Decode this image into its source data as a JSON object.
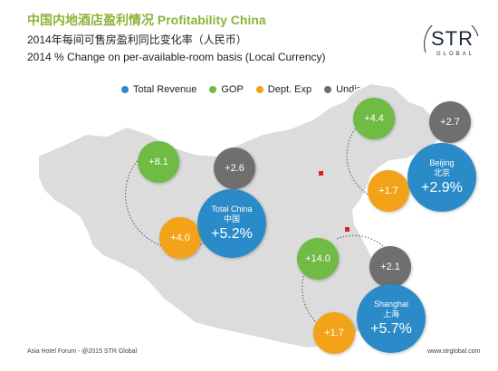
{
  "header": {
    "title": "中国内地酒店盈利情况 Profitability China",
    "subtitle_zh": "2014年每间可售房盈利同比变化率（人民币）",
    "subtitle_en": "2014 % Change on per-available-room basis (Local Currency)"
  },
  "logo": {
    "name": "STR",
    "tagline": "GLOBAL"
  },
  "legend": [
    {
      "label": "Total Revenue",
      "color": "#2b8bc8"
    },
    {
      "label": "GOP",
      "color": "#6fbb44"
    },
    {
      "label": "Dept. Exp",
      "color": "#f3a319"
    },
    {
      "label": "Undist. Exp",
      "color": "#6f6f6f"
    }
  ],
  "groups": {
    "china": {
      "city_en": "Total China",
      "city_zh": "中国",
      "total_revenue": "+5.2%",
      "gop": "+8.1",
      "dept_exp": "+4.0",
      "undist_exp": "+2.6"
    },
    "beijing": {
      "city_en": "Beijing",
      "city_zh": "北京",
      "total_revenue": "+2.9%",
      "gop": "+4.4",
      "dept_exp": "+1.7",
      "undist_exp": "+2.7"
    },
    "shanghai": {
      "city_en": "Shanghai",
      "city_zh": "上海",
      "total_revenue": "+5.7%",
      "gop": "+14.0",
      "dept_exp": "+1.7",
      "undist_exp": "+2.1"
    }
  },
  "footer": {
    "left": "Asia Hotel Forum - @2015 STR Global",
    "right": "www.strglobal.com"
  }
}
